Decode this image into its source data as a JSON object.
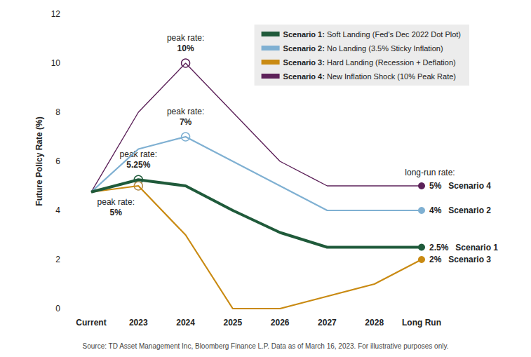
{
  "chart_data": {
    "type": "line",
    "categories": [
      "Current",
      "2023",
      "2024",
      "2025",
      "2026",
      "2027",
      "2028",
      "Long Run"
    ],
    "y_label": "Future Policy Rate (%)",
    "ylim": [
      0,
      12
    ],
    "yticks": [
      0,
      2,
      4,
      6,
      8,
      10,
      12
    ],
    "grid": false,
    "legend": "upper right",
    "source": "Source: TD Asset Management Inc, Bloomberg Finance L.P. Data as of March 16, 2023. For illustrative purposes only.",
    "peak_text": "peak rate:",
    "long_run_text": "long-run rate:",
    "series": [
      {
        "name": "Scenario 1: Soft Landing (Fed's Dec 2022 Dot Plot)",
        "color": "#1f5a3a",
        "values": [
          4.75,
          5.25,
          5.0,
          4.0,
          3.1,
          2.5,
          2.5,
          2.5
        ],
        "peak": {
          "category": "2023",
          "value": 5.25,
          "label": "5.25%"
        },
        "long_run": {
          "value": 2.5,
          "label": "2.5%"
        },
        "tag": "Scenario 1"
      },
      {
        "name": "Scenario 2: No Landing (3.5% Sticky Inflation)",
        "color": "#7fb0d2",
        "values": [
          4.75,
          6.5,
          7,
          6,
          5,
          4,
          4,
          4
        ],
        "peak": {
          "category": "2024",
          "value": 7,
          "label": "7%"
        },
        "long_run": {
          "value": 4,
          "label": "4%"
        },
        "tag": "Scenario 2"
      },
      {
        "name": "Scenario 3: Hard Landing (Recession + Deflation)",
        "color": "#c98a12",
        "values": [
          4.75,
          5,
          3,
          0,
          0,
          0.5,
          1,
          2
        ],
        "peak": {
          "category": "2023",
          "value": 5,
          "label": "5%"
        },
        "long_run": {
          "value": 2,
          "label": "2%"
        },
        "tag": "Scenario 3"
      },
      {
        "name": "Scenario 4: New Inflation Shock (10% Peak Rate)",
        "color": "#5c2159",
        "values": [
          4.75,
          8,
          10,
          8,
          6,
          5,
          5,
          5
        ],
        "peak": {
          "category": "2024",
          "value": 10,
          "label": "10%"
        },
        "long_run": {
          "value": 5,
          "label": "5%"
        },
        "tag": "Scenario 4"
      }
    ]
  }
}
